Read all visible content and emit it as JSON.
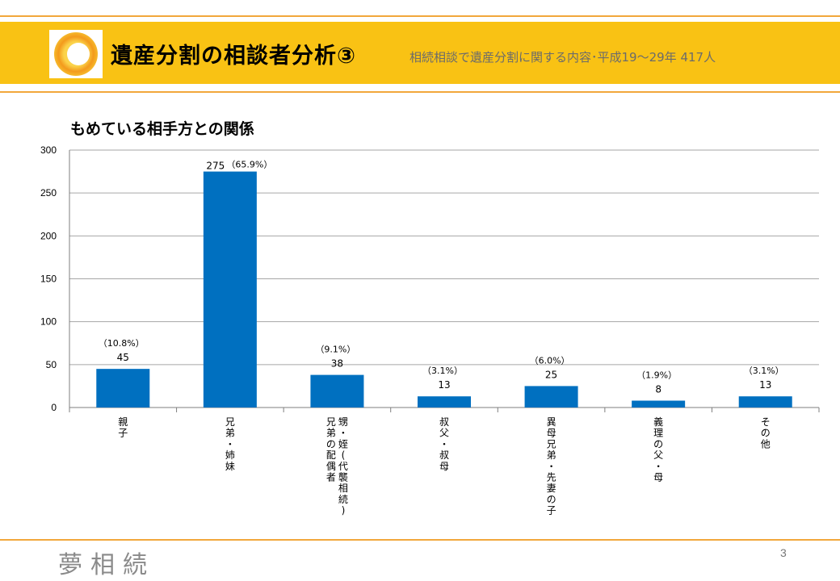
{
  "slide": {
    "title": "遺産分割の相談者分析③",
    "subtitle": "相続相談で遺産分割に関する内容･平成19～29年  417人",
    "page_number": "3",
    "brand": "夢相続",
    "accent_color": "#f9c214",
    "line_color": "#f2a73b"
  },
  "chart_data": {
    "type": "bar",
    "title": "もめている相手方との関係",
    "categories": [
      "親子",
      "兄弟・姉妹",
      "甥・姪(代襲相続)兄弟の配偶者",
      "叔父・叔母",
      "異母兄弟・先妻の子",
      "義理の父・母",
      "その他"
    ],
    "category_columns": [
      [
        "親子"
      ],
      [
        "兄弟・姉妹"
      ],
      [
        "甥・姪(代襲相続)",
        "兄弟の配偶者"
      ],
      [
        "叔父・叔母"
      ],
      [
        "異母兄弟・先妻の子"
      ],
      [
        "義理の父・母"
      ],
      [
        "その他"
      ]
    ],
    "values": [
      45,
      275,
      38,
      13,
      25,
      8,
      13
    ],
    "percent_labels": [
      "（10.8%）",
      "（65.9%）",
      "（9.1%）",
      "（3.1%）",
      "（6.0%）",
      "（1.9%）",
      "（3.1%）"
    ],
    "yticks": [
      0,
      50,
      100,
      150,
      200,
      250,
      300
    ],
    "ylim": [
      0,
      300
    ],
    "bar_color": "#0070c0",
    "grid": true
  }
}
